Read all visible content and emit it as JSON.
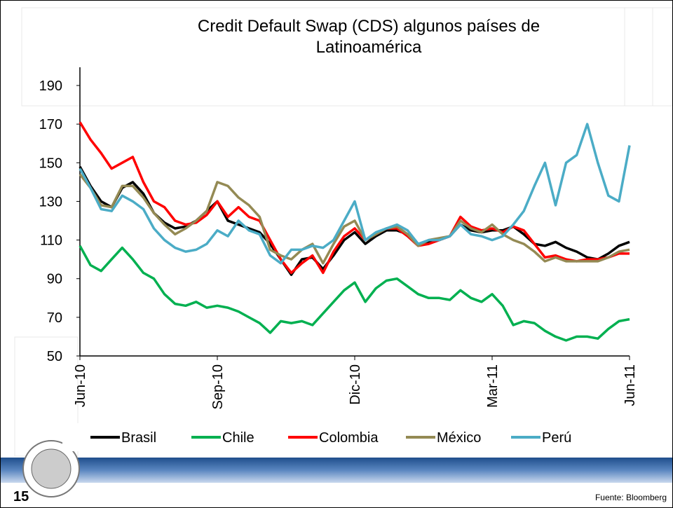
{
  "chart_data": {
    "type": "line",
    "title": "Credit Default Swap (CDS) algunos países de Latinoamérica",
    "categories": [
      "Jun-10",
      null,
      null,
      null,
      null,
      null,
      null,
      null,
      null,
      null,
      null,
      null,
      null,
      "Sep-10",
      null,
      null,
      null,
      null,
      null,
      null,
      null,
      null,
      null,
      null,
      null,
      null,
      "Dic-10",
      null,
      null,
      null,
      null,
      null,
      null,
      null,
      null,
      null,
      null,
      null,
      null,
      "Mar-11",
      null,
      null,
      null,
      null,
      null,
      null,
      null,
      null,
      null,
      null,
      null,
      null,
      "Jun-11"
    ],
    "ylim": [
      50,
      190
    ],
    "yticks": [
      50,
      70,
      90,
      110,
      130,
      150,
      170,
      190
    ],
    "legend": "bottom",
    "series": [
      {
        "name": "Brasil",
        "color": "#000000",
        "values": [
          148,
          138,
          130,
          127,
          137,
          140,
          134,
          124,
          119,
          116,
          117,
          120,
          125,
          130,
          120,
          118,
          116,
          114,
          108,
          100,
          92,
          100,
          101,
          95,
          102,
          110,
          114,
          108,
          112,
          115,
          115,
          113,
          108,
          109,
          110,
          112,
          118,
          115,
          114,
          115,
          115,
          117,
          113,
          108,
          107,
          109,
          106,
          104,
          101,
          100,
          103,
          107,
          109
        ]
      },
      {
        "name": "Chile",
        "color": "#00b050",
        "values": [
          107,
          97,
          94,
          100,
          106,
          100,
          93,
          90,
          82,
          77,
          76,
          78,
          75,
          76,
          75,
          73,
          70,
          67,
          62,
          68,
          67,
          68,
          66,
          72,
          78,
          84,
          88,
          78,
          85,
          89,
          90,
          86,
          82,
          80,
          80,
          79,
          84,
          80,
          78,
          82,
          76,
          66,
          68,
          67,
          63,
          60,
          58,
          60,
          60,
          59,
          64,
          68,
          69
        ]
      },
      {
        "name": "Colombia",
        "color": "#ff0000",
        "values": [
          171,
          162,
          155,
          147,
          150,
          153,
          140,
          130,
          127,
          120,
          118,
          119,
          123,
          130,
          122,
          127,
          122,
          120,
          110,
          100,
          93,
          98,
          102,
          93,
          104,
          112,
          116,
          110,
          113,
          116,
          116,
          112,
          107,
          108,
          110,
          112,
          122,
          117,
          115,
          116,
          114,
          117,
          115,
          108,
          101,
          102,
          100,
          99,
          100,
          100,
          101,
          103,
          103
        ]
      },
      {
        "name": "México",
        "color": "#948a54",
        "values": [
          144,
          137,
          128,
          127,
          138,
          138,
          132,
          124,
          118,
          113,
          116,
          120,
          125,
          140,
          138,
          132,
          128,
          122,
          105,
          102,
          100,
          105,
          108,
          98,
          108,
          117,
          120,
          110,
          113,
          116,
          117,
          113,
          107,
          110,
          111,
          112,
          120,
          116,
          114,
          118,
          113,
          110,
          108,
          104,
          99,
          101,
          99,
          99,
          99,
          99,
          101,
          104,
          105
        ]
      },
      {
        "name": "Perú",
        "color": "#4bacc6",
        "values": [
          147,
          137,
          126,
          125,
          133,
          130,
          126,
          116,
          110,
          106,
          104,
          105,
          108,
          115,
          112,
          120,
          115,
          113,
          102,
          98,
          105,
          105,
          107,
          106,
          110,
          120,
          130,
          110,
          114,
          116,
          118,
          115,
          108,
          110,
          110,
          112,
          118,
          113,
          112,
          110,
          112,
          118,
          125,
          138,
          150,
          128,
          150,
          154,
          170,
          150,
          133,
          130,
          159
        ]
      }
    ]
  },
  "slide": {
    "page_number": "15",
    "source": "Fuente: Bloomberg"
  }
}
